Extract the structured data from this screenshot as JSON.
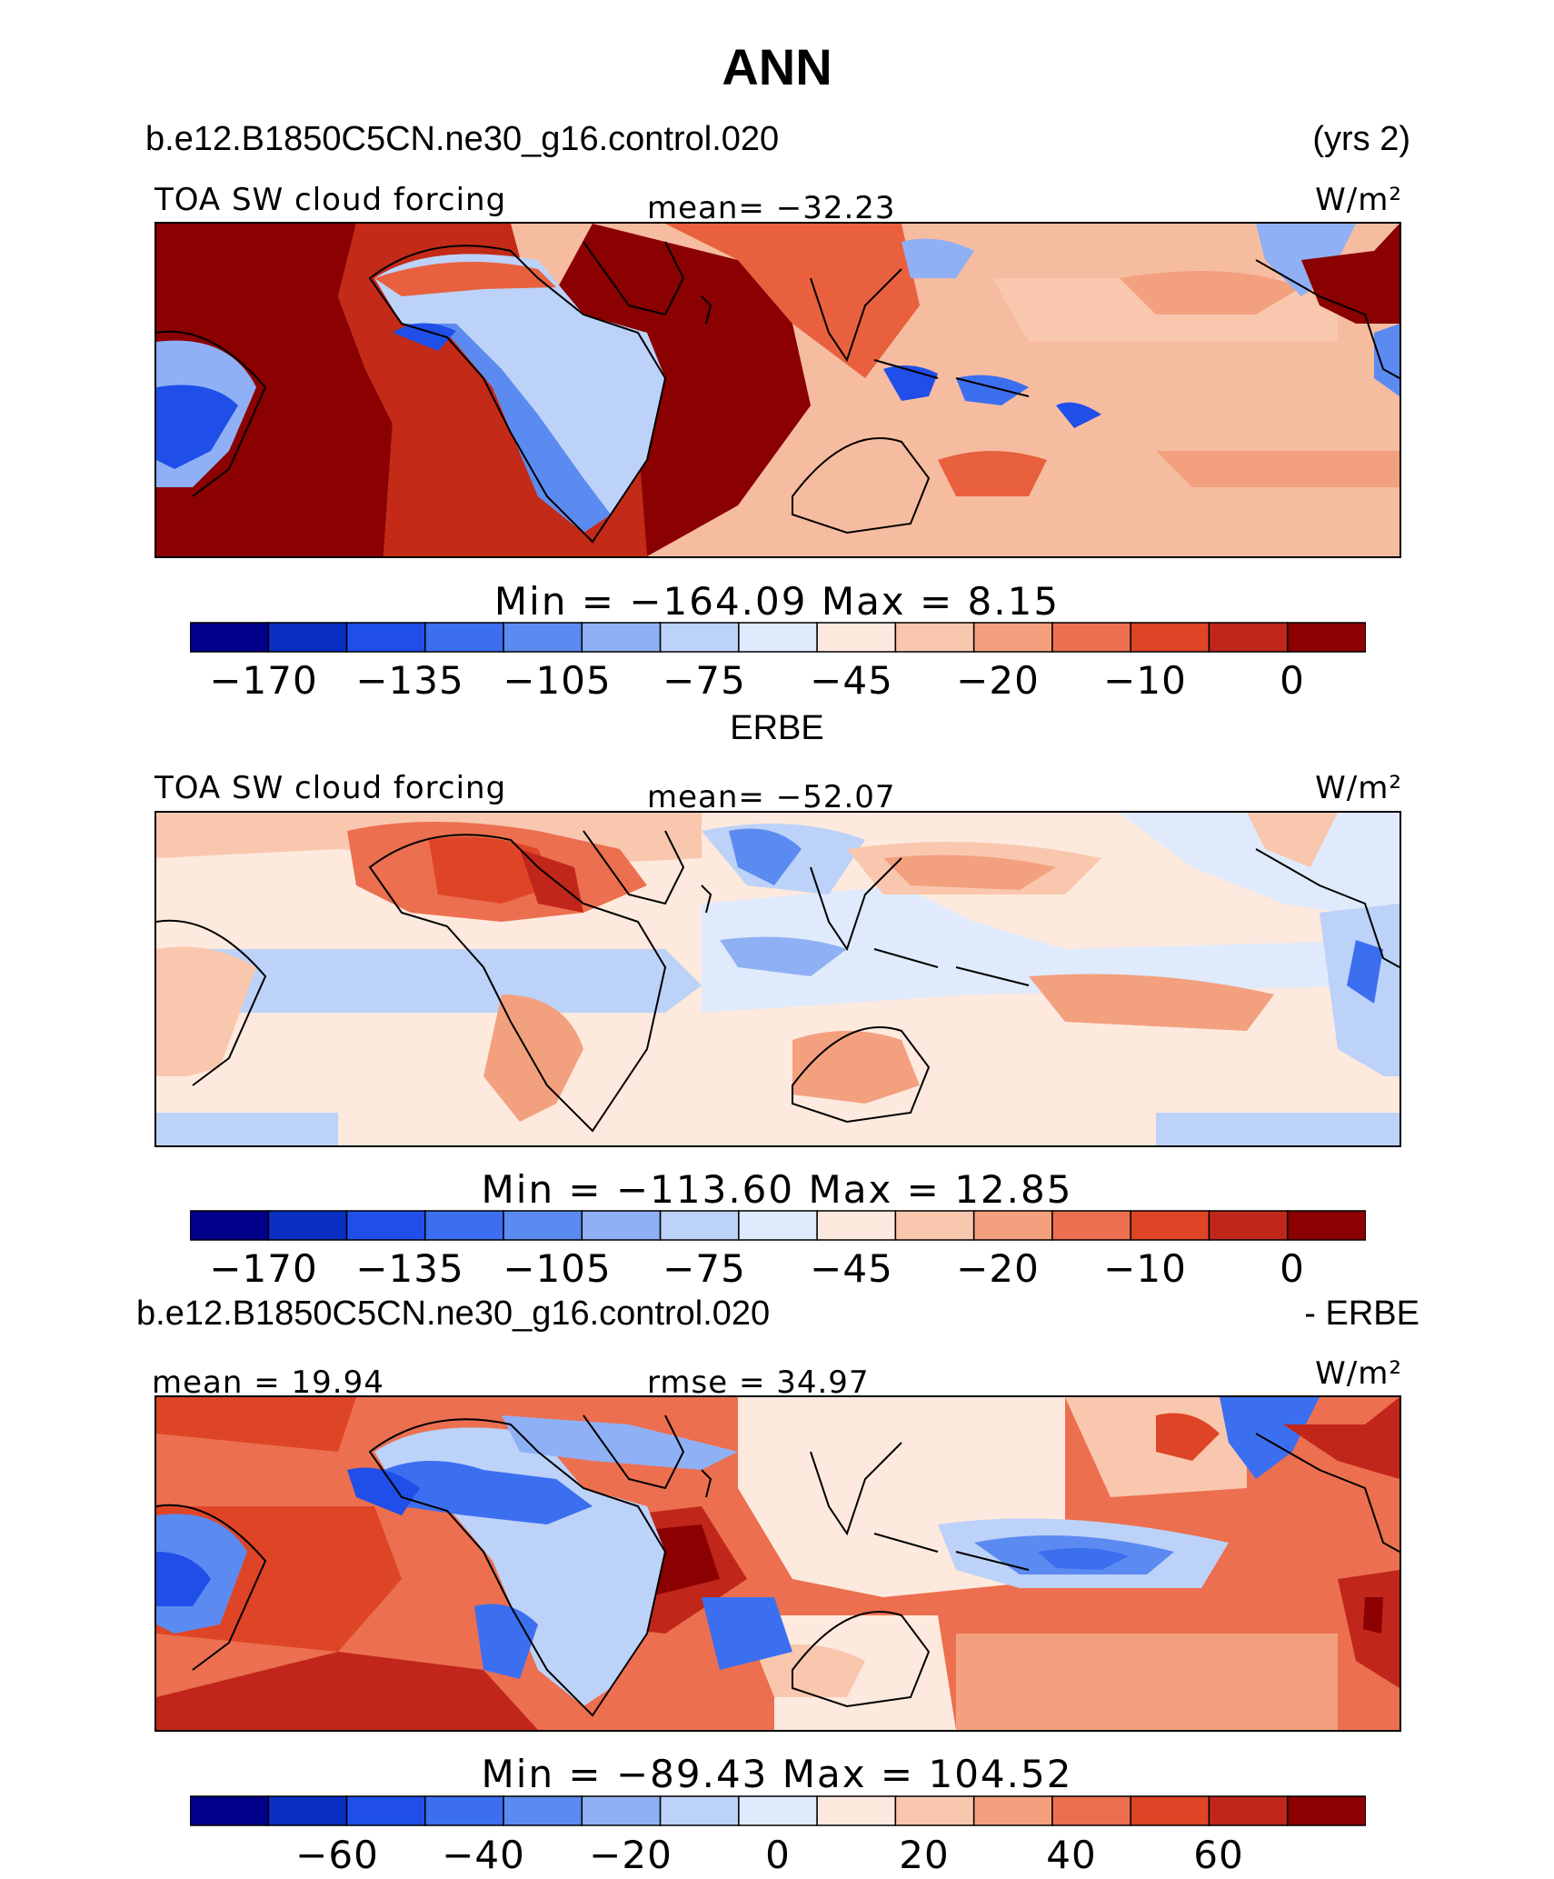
{
  "page": {
    "title": "ANN",
    "case_name": "b.e12.B1850C5CN.ne30_g16.control.020",
    "years": "(yrs 2)"
  },
  "panels": [
    {
      "id": "model",
      "heading": "",
      "variable": "TOA SW cloud forcing",
      "center_stat": "mean= −32.23",
      "units": "W/m²",
      "minmax": "Min  =  −164.09  Max  =     8.15",
      "cbar_ticks": [
        "−170",
        "−135",
        "−105",
        "−75",
        "−45",
        "−20",
        "−10",
        "0"
      ]
    },
    {
      "id": "obs",
      "heading": "ERBE",
      "variable": "TOA SW cloud forcing",
      "center_stat": "mean= −52.07",
      "units": "W/m²",
      "minmax": "Min  =  −113.60  Max  =    12.85",
      "cbar_ticks": [
        "−170",
        "−135",
        "−105",
        "−75",
        "−45",
        "−20",
        "−10",
        "0"
      ]
    },
    {
      "id": "diff",
      "heading_left": "b.e12.B1850C5CN.ne30_g16.control.020",
      "heading_right": "- ERBE",
      "left_stat": "mean  =   19.94",
      "center_stat": "rmse  =   34.97",
      "units": "W/m²",
      "minmax": "Min  =  −89.43  Max  =  104.52",
      "cbar_ticks": [
        "−60",
        "−40",
        "−20",
        "0",
        "20",
        "40",
        "60"
      ]
    }
  ],
  "chart_data": [
    {
      "type": "heatmap",
      "title": "TOA SW cloud forcing",
      "subtitle": "b.e12.B1850C5CN.ne30_g16.control.020 (yrs 2)",
      "units": "W/m²",
      "mean": -32.23,
      "min": -164.09,
      "max": 8.15,
      "contour_levels": [
        -170,
        -150,
        -135,
        -120,
        -105,
        -90,
        -75,
        -60,
        -45,
        -30,
        -20,
        -15,
        -10,
        -5,
        0
      ],
      "colorbar_labels": [
        -170,
        -135,
        -105,
        -75,
        -45,
        -20,
        -10,
        0
      ],
      "colors": [
        "#00008b",
        "#0a2fc2",
        "#1f4fe8",
        "#3c6ff0",
        "#5b8bf0",
        "#8fb0f4",
        "#bcd2f8",
        "#dfeafc",
        "#fde9dd",
        "#f9c7ae",
        "#f3a07f",
        "#ec6f4f",
        "#de4526",
        "#c0271a",
        "#8b0000"
      ]
    },
    {
      "type": "heatmap",
      "title": "TOA SW cloud forcing",
      "subtitle": "ERBE",
      "units": "W/m²",
      "mean": -52.07,
      "min": -113.6,
      "max": 12.85,
      "contour_levels": [
        -170,
        -150,
        -135,
        -120,
        -105,
        -90,
        -75,
        -60,
        -45,
        -30,
        -20,
        -15,
        -10,
        -5,
        0
      ],
      "colorbar_labels": [
        -170,
        -135,
        -105,
        -75,
        -45,
        -20,
        -10,
        0
      ],
      "colors": [
        "#00008b",
        "#0a2fc2",
        "#1f4fe8",
        "#3c6ff0",
        "#5b8bf0",
        "#8fb0f4",
        "#bcd2f8",
        "#dfeafc",
        "#fde9dd",
        "#f9c7ae",
        "#f3a07f",
        "#ec6f4f",
        "#de4526",
        "#c0271a",
        "#8b0000"
      ]
    },
    {
      "type": "heatmap",
      "title": "b.e12.B1850C5CN.ne30_g16.control.020 - ERBE",
      "units": "W/m²",
      "mean": 19.94,
      "rmse": 34.97,
      "min": -89.43,
      "max": 104.52,
      "contour_levels": [
        -70,
        -60,
        -50,
        -40,
        -30,
        -20,
        -10,
        0,
        10,
        20,
        30,
        40,
        50,
        60,
        70
      ],
      "colorbar_labels": [
        -60,
        -40,
        -20,
        0,
        20,
        40,
        60
      ],
      "colors": [
        "#00008b",
        "#0a2fc2",
        "#1f4fe8",
        "#3c6ff0",
        "#5b8bf0",
        "#8fb0f4",
        "#bcd2f8",
        "#dfeafc",
        "#fde9dd",
        "#f9c7ae",
        "#f3a07f",
        "#ec6f4f",
        "#de4526",
        "#c0271a",
        "#8b0000"
      ]
    }
  ]
}
